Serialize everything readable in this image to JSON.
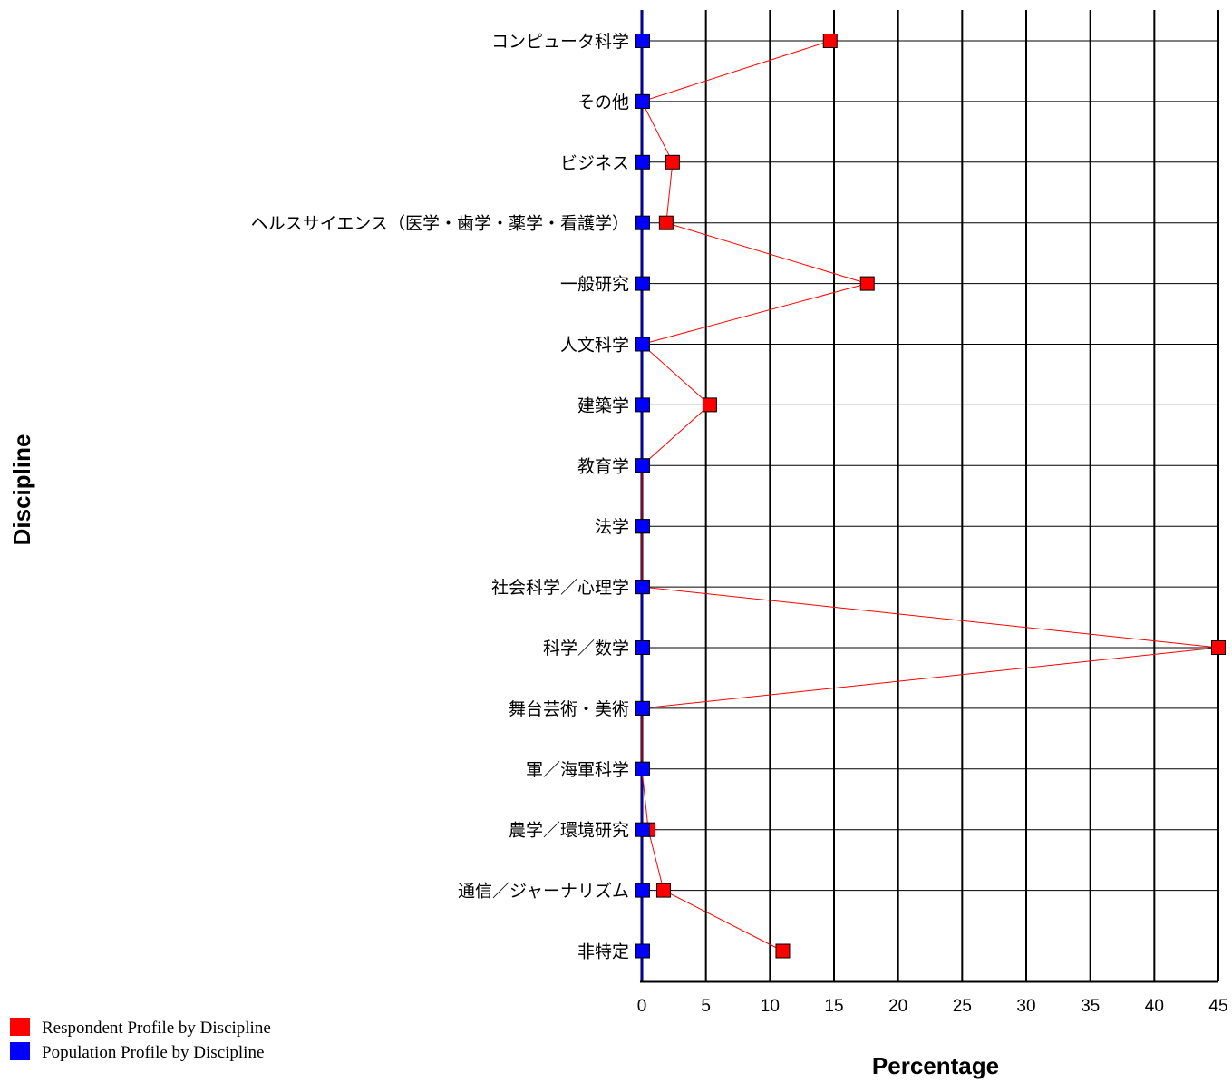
{
  "chart_data": {
    "type": "line",
    "orientation": "horizontal",
    "categories": [
      "コンピュータ科学",
      "その他",
      "ビジネス",
      "ヘルスサイエンス（医学・歯学・薬学・看護学）",
      "一般研究",
      "人文科学",
      "建築学",
      "教育学",
      "法学",
      "社会科学／心理学",
      "科学／数学",
      "舞台芸術・美術",
      "軍／海軍科学",
      "農学／環境研究",
      "通信／ジャーナリズム",
      "非特定"
    ],
    "series": [
      {
        "name": "Respondent Profile by Discipline",
        "color": "#ff0000",
        "values": [
          14.7,
          0,
          2.4,
          1.9,
          17.6,
          0,
          5.3,
          0,
          0,
          0,
          45,
          0,
          0,
          0.5,
          1.7,
          11.0
        ]
      },
      {
        "name": "Population Profile by Discipline",
        "color": "#0000ff",
        "values": [
          0,
          0,
          0,
          0,
          0,
          0,
          0,
          0,
          0,
          0,
          0,
          0,
          0,
          0,
          0,
          0
        ]
      }
    ],
    "xlabel": "Percentage",
    "ylabel": "Discipline",
    "xlim": [
      0,
      45
    ],
    "xticks": [
      0,
      5,
      10,
      15,
      20,
      25,
      30,
      35,
      40,
      45
    ],
    "grid": true,
    "legend_position": "bottom-left"
  }
}
